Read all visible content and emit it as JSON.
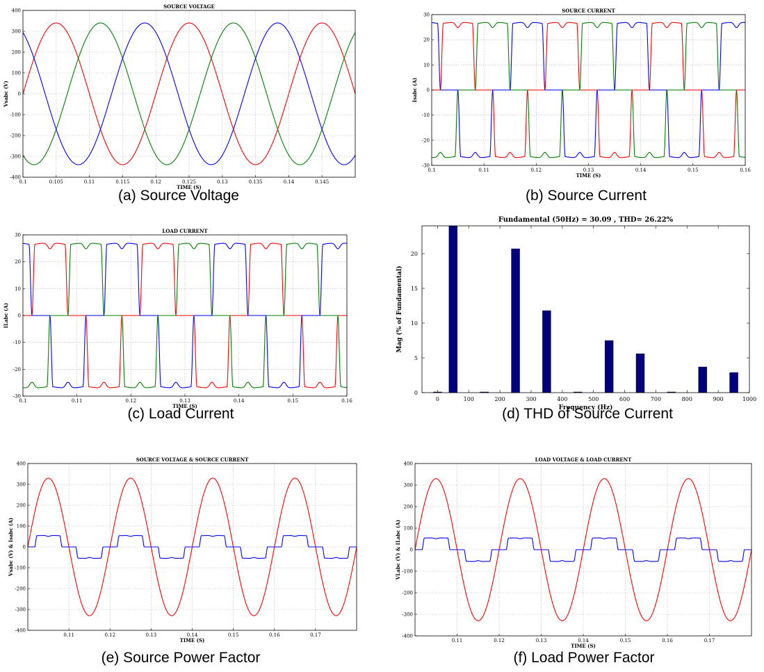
{
  "chart_data": [
    {
      "id": "a",
      "type": "line",
      "title": "SOURCE VOLTAGE",
      "xlabel": "TIME (S)",
      "ylabel": "Vsabc (V)",
      "caption": "(a) Source Voltage",
      "xlim": [
        0.1,
        0.15
      ],
      "ylim": [
        -400,
        400
      ],
      "xticks": [
        0.1,
        0.105,
        0.11,
        0.115,
        0.12,
        0.125,
        0.13,
        0.135,
        0.14,
        0.145
      ],
      "xtick_labels": [
        "0.1",
        "0.105",
        "0.11",
        "0.115",
        "0.12",
        "0.125",
        "0.13",
        "0.135",
        "0.14",
        "0.145"
      ],
      "yticks": [
        -400,
        -300,
        -200,
        -100,
        0,
        100,
        200,
        300,
        400
      ],
      "ytick_labels": [
        "-400",
        "-300",
        "-200",
        "-100",
        "0",
        "100",
        "200",
        "300",
        "400"
      ],
      "grid": true,
      "signal": "sine",
      "amplitude": 340,
      "frequency_hz": 50,
      "series": [
        {
          "color": "#ff0000",
          "phase_deg": 0
        },
        {
          "color": "#008000",
          "phase_deg": -120
        },
        {
          "color": "#0000ff",
          "phase_deg": 120
        }
      ]
    },
    {
      "id": "b",
      "type": "line",
      "title": "SOURCE CURRENT",
      "xlabel": "TIME (S)",
      "ylabel": "Isabc (A)",
      "caption": "(b) Source Current",
      "xlim": [
        0.1,
        0.16
      ],
      "ylim": [
        -30,
        30
      ],
      "xticks": [
        0.1,
        0.11,
        0.12,
        0.13,
        0.14,
        0.15,
        0.16
      ],
      "xtick_labels": [
        "0.1",
        "0.11",
        "0.12",
        "0.13",
        "0.14",
        "0.15",
        "0.16"
      ],
      "yticks": [
        -30,
        -20,
        -10,
        0,
        10,
        20,
        30
      ],
      "ytick_labels": [
        "-30",
        "-20",
        "-10",
        "0",
        "10",
        "20",
        "30"
      ],
      "grid": true,
      "signal": "six-pulse",
      "amplitude": 27,
      "frequency_hz": 50,
      "series": [
        {
          "color": "#ff0000",
          "phase_deg": 0
        },
        {
          "color": "#008000",
          "phase_deg": -120
        },
        {
          "color": "#0000ff",
          "phase_deg": 120
        }
      ]
    },
    {
      "id": "c",
      "type": "line",
      "title": "LOAD CURRENT",
      "xlabel": "TIME (S)",
      "ylabel": "ILabc (A)",
      "caption": "(c) Load Current",
      "xlim": [
        0.1,
        0.16
      ],
      "ylim": [
        -30,
        30
      ],
      "xticks": [
        0.1,
        0.11,
        0.12,
        0.13,
        0.14,
        0.15,
        0.16
      ],
      "xtick_labels": [
        "0.1",
        "0.11",
        "0.12",
        "0.13",
        "0.14",
        "0.15",
        "0.16"
      ],
      "yticks": [
        -30,
        -20,
        -10,
        0,
        10,
        20,
        30
      ],
      "ytick_labels": [
        "-30",
        "-20",
        "-10",
        "0",
        "10",
        "20",
        "30"
      ],
      "grid": true,
      "signal": "six-pulse",
      "amplitude": 27,
      "frequency_hz": 50,
      "series": [
        {
          "color": "#ff0000",
          "phase_deg": 0
        },
        {
          "color": "#008000",
          "phase_deg": -120
        },
        {
          "color": "#0000ff",
          "phase_deg": 120
        }
      ]
    },
    {
      "id": "d",
      "type": "bar",
      "title": "Fundamental (50Hz) = 30.09 , THD= 26.22%",
      "xlabel": "Frequency (Hz)",
      "ylabel": "Mag (% of Fundamental)",
      "caption": "(d) THD of Source Current",
      "bar_color": "#00007f",
      "x": [
        0,
        50,
        150,
        250,
        350,
        450,
        550,
        650,
        750,
        850,
        950
      ],
      "values": [
        0.1,
        24,
        0.1,
        20.7,
        11.8,
        0.1,
        7.5,
        5.6,
        0.1,
        3.7,
        2.9
      ],
      "xlim": [
        -50,
        1000
      ],
      "ylim": [
        0,
        24
      ],
      "xticks": [
        0,
        100,
        200,
        300,
        400,
        500,
        600,
        700,
        800,
        900,
        1000
      ],
      "xtick_labels": [
        "0",
        "100",
        "200",
        "300",
        "400",
        "500",
        "600",
        "700",
        "800",
        "900",
        "1000"
      ],
      "yticks": [
        0,
        5,
        10,
        15,
        20
      ],
      "ytick_labels": [
        "0",
        "5",
        "10",
        "15",
        "20"
      ],
      "grid": false
    },
    {
      "id": "e",
      "type": "line",
      "title": "SOURCE VOLTAGE & SOURCE CURRENT",
      "xlabel": "TIME (S)",
      "ylabel": "Vsabc (V) & Isabc (A)",
      "caption": "(e) Source Power Factor",
      "xlim": [
        0.1,
        0.18
      ],
      "ylim": [
        -400,
        400
      ],
      "xticks": [
        0.11,
        0.12,
        0.13,
        0.14,
        0.15,
        0.16,
        0.17
      ],
      "xtick_labels": [
        "0.11",
        "0.12",
        "0.13",
        "0.14",
        "0.15",
        "0.16",
        "0.17"
      ],
      "yticks": [
        -400,
        -300,
        -200,
        -100,
        0,
        100,
        200,
        300,
        400
      ],
      "ytick_labels": [
        "-400",
        "-300",
        "-200",
        "-100",
        "0",
        "100",
        "200",
        "300",
        "400"
      ],
      "grid": true,
      "series": [
        {
          "color": "#ff0000",
          "signal": "sine",
          "amplitude": 330,
          "frequency_hz": 50,
          "phase_deg": 0
        },
        {
          "color": "#0000ff",
          "signal": "six-pulse",
          "amplitude": 55,
          "frequency_hz": 50,
          "phase_deg": 0
        }
      ]
    },
    {
      "id": "f",
      "type": "line",
      "title": "LOAD VOLTAGE & LOAD CURRENT",
      "xlabel": "TIME (S)",
      "ylabel": "VLabc (V) & ILabc (A)",
      "caption": "(f) Load Power Factor",
      "xlim": [
        0.1,
        0.18
      ],
      "ylim": [
        -400,
        400
      ],
      "xticks": [
        0.11,
        0.12,
        0.13,
        0.14,
        0.15,
        0.16,
        0.17
      ],
      "xtick_labels": [
        "0.11",
        "0.12",
        "0.13",
        "0.14",
        "0.15",
        "0.16",
        "0.17"
      ],
      "yticks": [
        -400,
        -300,
        -200,
        -100,
        0,
        100,
        200,
        300,
        400
      ],
      "ytick_labels": [
        "-400",
        "-300",
        "-200",
        "-100",
        "0",
        "100",
        "200",
        "300",
        "400"
      ],
      "grid": true,
      "series": [
        {
          "color": "#ff0000",
          "signal": "sine",
          "amplitude": 330,
          "frequency_hz": 50,
          "phase_deg": 0
        },
        {
          "color": "#0000ff",
          "signal": "six-pulse",
          "amplitude": 55,
          "frequency_hz": 50,
          "phase_deg": 0
        }
      ]
    }
  ]
}
